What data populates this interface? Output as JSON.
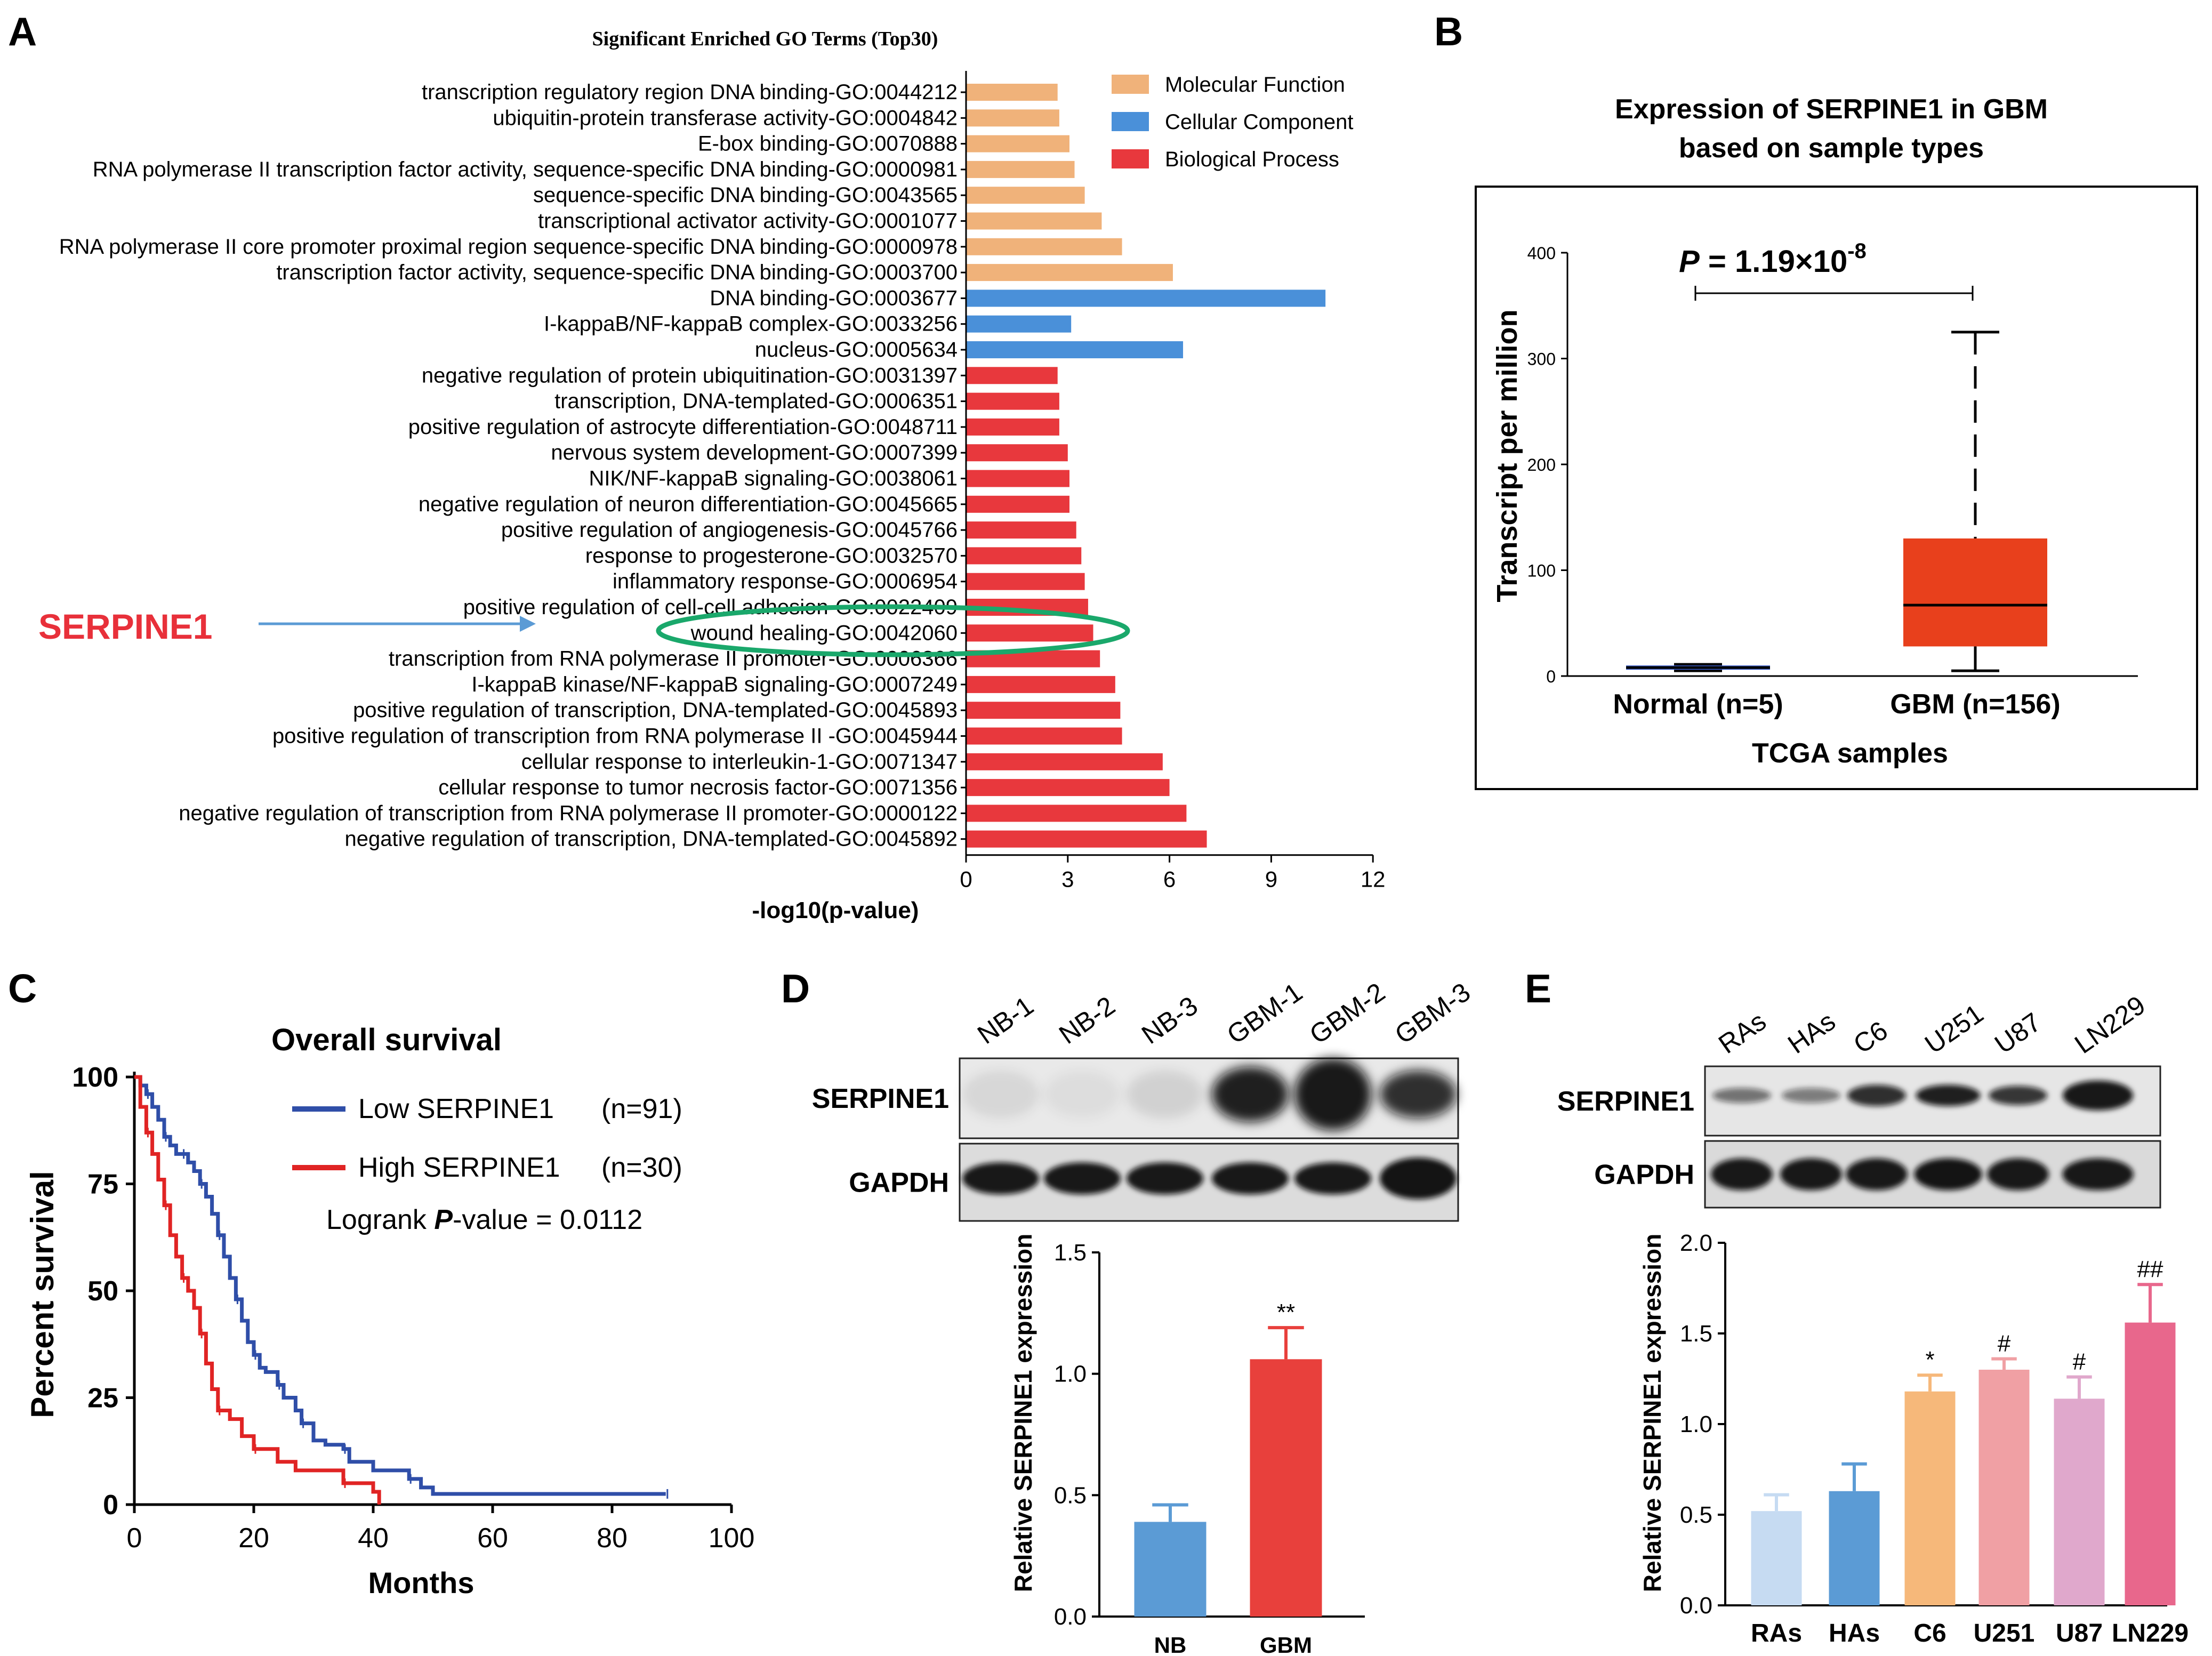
{
  "panel_labels": {
    "a": "A",
    "b": "B",
    "c": "C",
    "d": "D",
    "e": "E"
  },
  "annotation": {
    "gene_label": "SERPINE1",
    "arrow_color": "#5b9bd5",
    "label_color": "#e8303a",
    "ellipse_color": "#1aa86b"
  },
  "chart_data": [
    {
      "id": "A",
      "type": "bar",
      "orientation": "horizontal",
      "title": "Significant Enriched GO Terms (Top30)",
      "xlabel": "-log10(p-value)",
      "xlim": [
        0,
        12
      ],
      "xticks": [
        0,
        3,
        6,
        9,
        12
      ],
      "legend": [
        {
          "name": "Molecular Function",
          "color": "#f0b27a"
        },
        {
          "name": "Cellular Component",
          "color": "#4a90d9"
        },
        {
          "name": "Biological Process",
          "color": "#e8383d"
        }
      ],
      "legend_position": "top-right",
      "categories": [
        "transcription regulatory region DNA binding-GO:0044212",
        "ubiquitin-protein transferase activity-GO:0004842",
        "E-box binding-GO:0070888",
        "RNA polymerase II transcription factor activity, sequence-specific DNA binding-GO:0000981",
        "sequence-specific DNA binding-GO:0043565",
        "transcriptional activator activity-GO:0001077",
        "RNA polymerase II core promoter proximal region sequence-specific DNA binding-GO:0000978",
        "transcription factor activity, sequence-specific DNA binding-GO:0003700",
        "DNA binding-GO:0003677",
        "I-kappaB/NF-kappaB complex-GO:0033256",
        "nucleus-GO:0005634",
        "negative regulation of protein ubiquitination-GO:0031397",
        "transcription, DNA-templated-GO:0006351",
        "positive regulation of astrocyte differentiation-GO:0048711",
        "nervous system development-GO:0007399",
        "NIK/NF-kappaB signaling-GO:0038061",
        "negative regulation of neuron differentiation-GO:0045665",
        "positive regulation of angiogenesis-GO:0045766",
        "response to progesterone-GO:0032570",
        "inflammatory response-GO:0006954",
        "positive regulation of cell-cell adhesion-GO:0022409",
        "wound healing-GO:0042060",
        "transcription from RNA polymerase II promoter-GO:0006366",
        "I-kappaB kinase/NF-kappaB signaling-GO:0007249",
        "positive regulation of transcription, DNA-templated-GO:0045893",
        "positive regulation of transcription from RNA polymerase II -GO:0045944",
        "cellular response to interleukin-1-GO:0071347",
        "cellular response to tumor necrosis factor-GO:0071356",
        "negative regulation of transcription from RNA polymerase II promoter-GO:0000122",
        "negative regulation of transcription, DNA-templated-GO:0045892"
      ],
      "values": [
        2.7,
        2.75,
        3.05,
        3.2,
        3.5,
        4.0,
        4.6,
        6.1,
        10.6,
        3.1,
        6.4,
        2.7,
        2.75,
        2.75,
        3.0,
        3.05,
        3.05,
        3.25,
        3.4,
        3.5,
        3.6,
        3.75,
        3.95,
        4.4,
        4.55,
        4.6,
        5.8,
        6.0,
        6.5,
        7.1
      ],
      "groups": [
        "MF",
        "MF",
        "MF",
        "MF",
        "MF",
        "MF",
        "MF",
        "MF",
        "CC",
        "CC",
        "CC",
        "BP",
        "BP",
        "BP",
        "BP",
        "BP",
        "BP",
        "BP",
        "BP",
        "BP",
        "BP",
        "BP",
        "BP",
        "BP",
        "BP",
        "BP",
        "BP",
        "BP",
        "BP",
        "BP"
      ],
      "group_colors": {
        "MF": "#f0b27a",
        "CC": "#4a90d9",
        "BP": "#e8383d"
      }
    },
    {
      "id": "B",
      "type": "box",
      "title": "Expression of SERPINE1 in GBM based on sample types",
      "title_lines": [
        "Expression of SERPINE1 in GBM",
        "based on sample types"
      ],
      "xlabel": "TCGA samples",
      "ylabel": "Transcript per million",
      "ylim": [
        0,
        400
      ],
      "yticks": [
        0,
        100,
        200,
        300,
        400
      ],
      "pvalue_prefix": "P",
      "pvalue_text": " = 1.19×10",
      "pvalue_exp": "-8",
      "categories": [
        "Normal (n=5)",
        "GBM (n=156)"
      ],
      "boxes": [
        {
          "name": "Normal (n=5)",
          "min": 5,
          "q1": 6,
          "median": 8,
          "q3": 10,
          "max": 11,
          "color": "#3c5fcf"
        },
        {
          "name": "GBM (n=156)",
          "min": 5,
          "q1": 28,
          "median": 67,
          "q3": 130,
          "max": 325,
          "color": "#e8401c"
        }
      ]
    },
    {
      "id": "C",
      "type": "line",
      "title": "Overall survival",
      "xlabel": "Months",
      "ylabel": "Percent survival",
      "xlim": [
        0,
        100
      ],
      "ylim": [
        0,
        100
      ],
      "xticks": [
        0,
        20,
        40,
        60,
        80,
        100
      ],
      "yticks": [
        0,
        25,
        50,
        75,
        100
      ],
      "logrank_prefix": "Logrank ",
      "logrank_p": "P",
      "logrank_suffix": "-value = 0.0112",
      "series": [
        {
          "name": "Low SERPINE1",
          "n_label": "(n=91)",
          "color": "#2f4ea8",
          "x": [
            0,
            1,
            2,
            3,
            4,
            5,
            6,
            7,
            8,
            9,
            10,
            11,
            12,
            13,
            14,
            15,
            16,
            17,
            18,
            19,
            20,
            21,
            22,
            24,
            25,
            27,
            28,
            30,
            32,
            35,
            36,
            40,
            46,
            48,
            50,
            89
          ],
          "y": [
            100,
            98,
            96,
            93,
            90,
            86,
            84,
            82,
            82,
            80,
            78,
            75,
            72,
            68,
            63,
            58,
            53,
            48,
            43,
            38,
            35,
            32,
            31,
            28,
            25,
            22,
            19,
            15,
            14,
            13,
            10,
            8,
            6,
            4,
            2.5,
            2.5
          ]
        },
        {
          "name": "High SERPINE1",
          "n_label": "(n=30)",
          "color": "#e02424",
          "x": [
            0,
            1,
            2,
            3,
            4,
            5,
            6,
            7,
            8,
            9,
            10,
            11,
            12,
            13,
            14,
            16,
            18,
            20,
            24,
            27,
            35,
            40,
            41
          ],
          "y": [
            100,
            93,
            87,
            82,
            76,
            70,
            63,
            58,
            53,
            50,
            46,
            40,
            33,
            27,
            22,
            20,
            16,
            13,
            10,
            8,
            5,
            3,
            0
          ]
        }
      ]
    },
    {
      "id": "D",
      "type": "bar",
      "ylabel": "Relative SERPINE1 expression",
      "ylim": [
        0,
        1.5
      ],
      "yticks": [
        0.0,
        0.5,
        1.0,
        1.5
      ],
      "categories": [
        "NB",
        "GBM"
      ],
      "values": [
        0.39,
        1.06
      ],
      "errors": [
        0.07,
        0.13
      ],
      "colors": [
        "#5b9bd5",
        "#e8403c"
      ],
      "significance": [
        "",
        "**"
      ],
      "blot_lanes": [
        "NB-1",
        "NB-2",
        "NB-3",
        "GBM-1",
        "GBM-2",
        "GBM-3"
      ],
      "blot_rows": [
        "SERPINE1",
        "GAPDH"
      ]
    },
    {
      "id": "E",
      "type": "bar",
      "ylabel": "Relative SERPINE1 expression",
      "ylim": [
        0,
        2.0
      ],
      "yticks": [
        0.0,
        0.5,
        1.0,
        1.5,
        2.0
      ],
      "categories": [
        "RAs",
        "HAs",
        "C6",
        "U251",
        "U87",
        "LN229"
      ],
      "values": [
        0.52,
        0.63,
        1.18,
        1.3,
        1.14,
        1.56
      ],
      "errors": [
        0.09,
        0.15,
        0.09,
        0.06,
        0.12,
        0.21
      ],
      "colors": [
        "#c6dbf2",
        "#5b9bd5",
        "#f6b87a",
        "#f0a0a4",
        "#e0a8cc",
        "#e8678c"
      ],
      "significance": [
        "",
        "",
        "*",
        "#",
        "#",
        "##"
      ],
      "blot_lanes": [
        "RAs",
        "HAs",
        "C6",
        "U251",
        "U87",
        "LN229"
      ],
      "blot_rows": [
        "SERPINE1",
        "GAPDH"
      ]
    }
  ]
}
